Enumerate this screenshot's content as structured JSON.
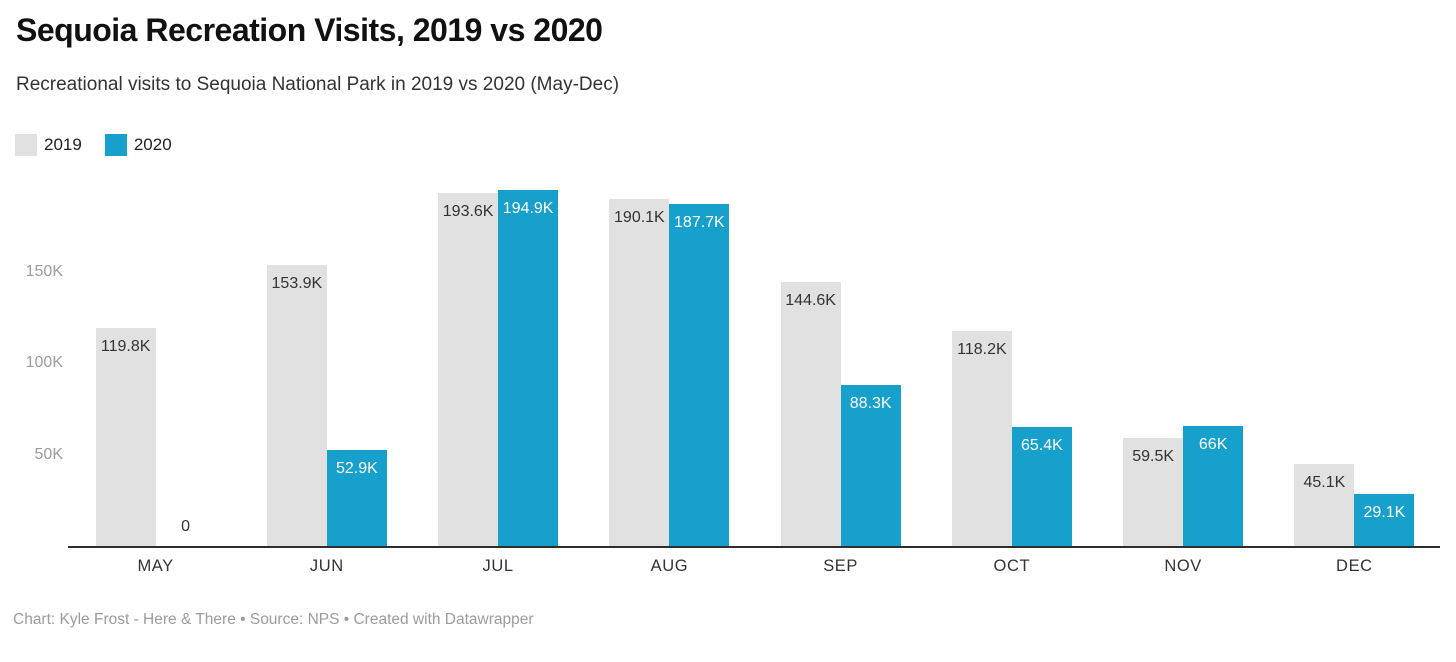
{
  "header": {
    "title": "Sequoia Recreation Visits, 2019 vs 2020",
    "subtitle": "Recreational visits to Sequoia National Park in 2019 vs 2020 (May-Dec)"
  },
  "legend": [
    {
      "label": "2019",
      "color": "#e1e1e1"
    },
    {
      "label": "2020",
      "color": "#18a0cd"
    }
  ],
  "footer": {
    "text": "Chart: Kyle Frost - Here & There • Source: NPS • Created with Datawrapper"
  },
  "chart_data": {
    "type": "bar",
    "grouped": true,
    "title": "Sequoia Recreation Visits, 2019 vs 2020",
    "subtitle": "Recreational visits to Sequoia National Park in 2019 vs 2020 (May-Dec)",
    "categories": [
      "MAY",
      "JUN",
      "JUL",
      "AUG",
      "SEP",
      "OCT",
      "NOV",
      "DEC"
    ],
    "series": [
      {
        "name": "2019",
        "color": "#e1e1e1",
        "label_color": "#333333",
        "values": [
          119800,
          153900,
          193600,
          190100,
          144600,
          118200,
          59500,
          45100
        ],
        "labels": [
          "119.8K",
          "153.9K",
          "193.6K",
          "190.1K",
          "144.6K",
          "118.2K",
          "59.5K",
          "45.1K"
        ]
      },
      {
        "name": "2020",
        "color": "#18a0cd",
        "label_color": "#ffffff",
        "values": [
          0,
          52900,
          194900,
          187700,
          88300,
          65400,
          66000,
          29100
        ],
        "labels": [
          "0",
          "52.9K",
          "194.9K",
          "187.7K",
          "88.3K",
          "65.4K",
          "66K",
          "29.1K"
        ]
      }
    ],
    "y_ticks": [
      {
        "value": 50000,
        "label": "50K"
      },
      {
        "value": 100000,
        "label": "100K"
      },
      {
        "value": 150000,
        "label": "150K"
      }
    ],
    "ylim": [
      0,
      195000
    ],
    "xlabel": "",
    "ylabel": "",
    "grid": false,
    "legend_position": "top-left",
    "bar_label_placement": "inside-top"
  }
}
